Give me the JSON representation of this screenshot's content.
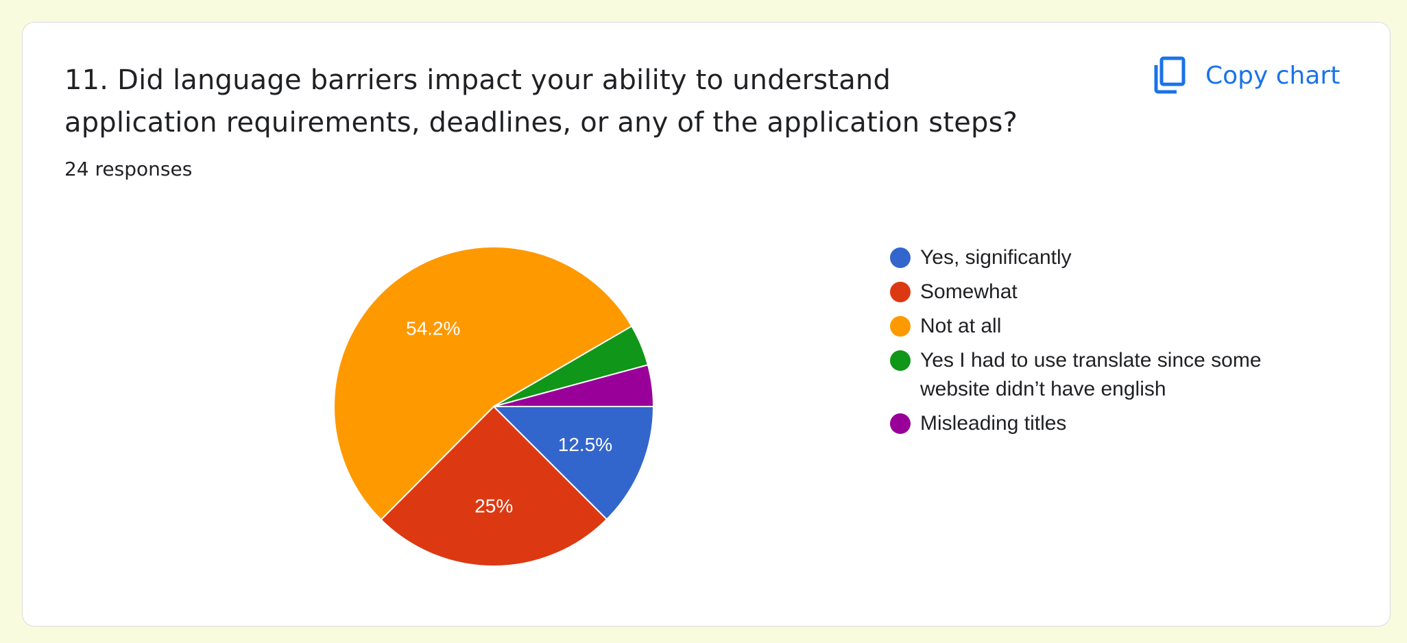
{
  "question": {
    "title": "11. Did language barriers impact your ability to understand application requirements, deadlines, or any of the application steps?",
    "responses": "24 responses"
  },
  "toolbar": {
    "copy_label": "Copy chart",
    "copy_icon": "copy-icon"
  },
  "colors": {
    "yes_significantly": "#3366cc",
    "somewhat": "#dc3912",
    "not_at_all": "#ff9900",
    "translate": "#109618",
    "misleading": "#990099"
  },
  "chart_data": {
    "type": "pie",
    "slices": [
      {
        "label": "Yes, significantly",
        "percent": 12.5,
        "data_label": "12.5%",
        "color": "#3366cc"
      },
      {
        "label": "Somewhat",
        "percent": 25.0,
        "data_label": "25%",
        "color": "#dc3912"
      },
      {
        "label": "Not at all",
        "percent": 54.2,
        "data_label": "54.2%",
        "color": "#ff9900"
      },
      {
        "label": "Yes I had to use translate since some website didn’t have english",
        "percent": 4.2,
        "data_label": "",
        "color": "#109618"
      },
      {
        "label": "Misleading titles",
        "percent": 4.2,
        "data_label": "",
        "color": "#990099"
      }
    ],
    "legend_position": "right"
  }
}
